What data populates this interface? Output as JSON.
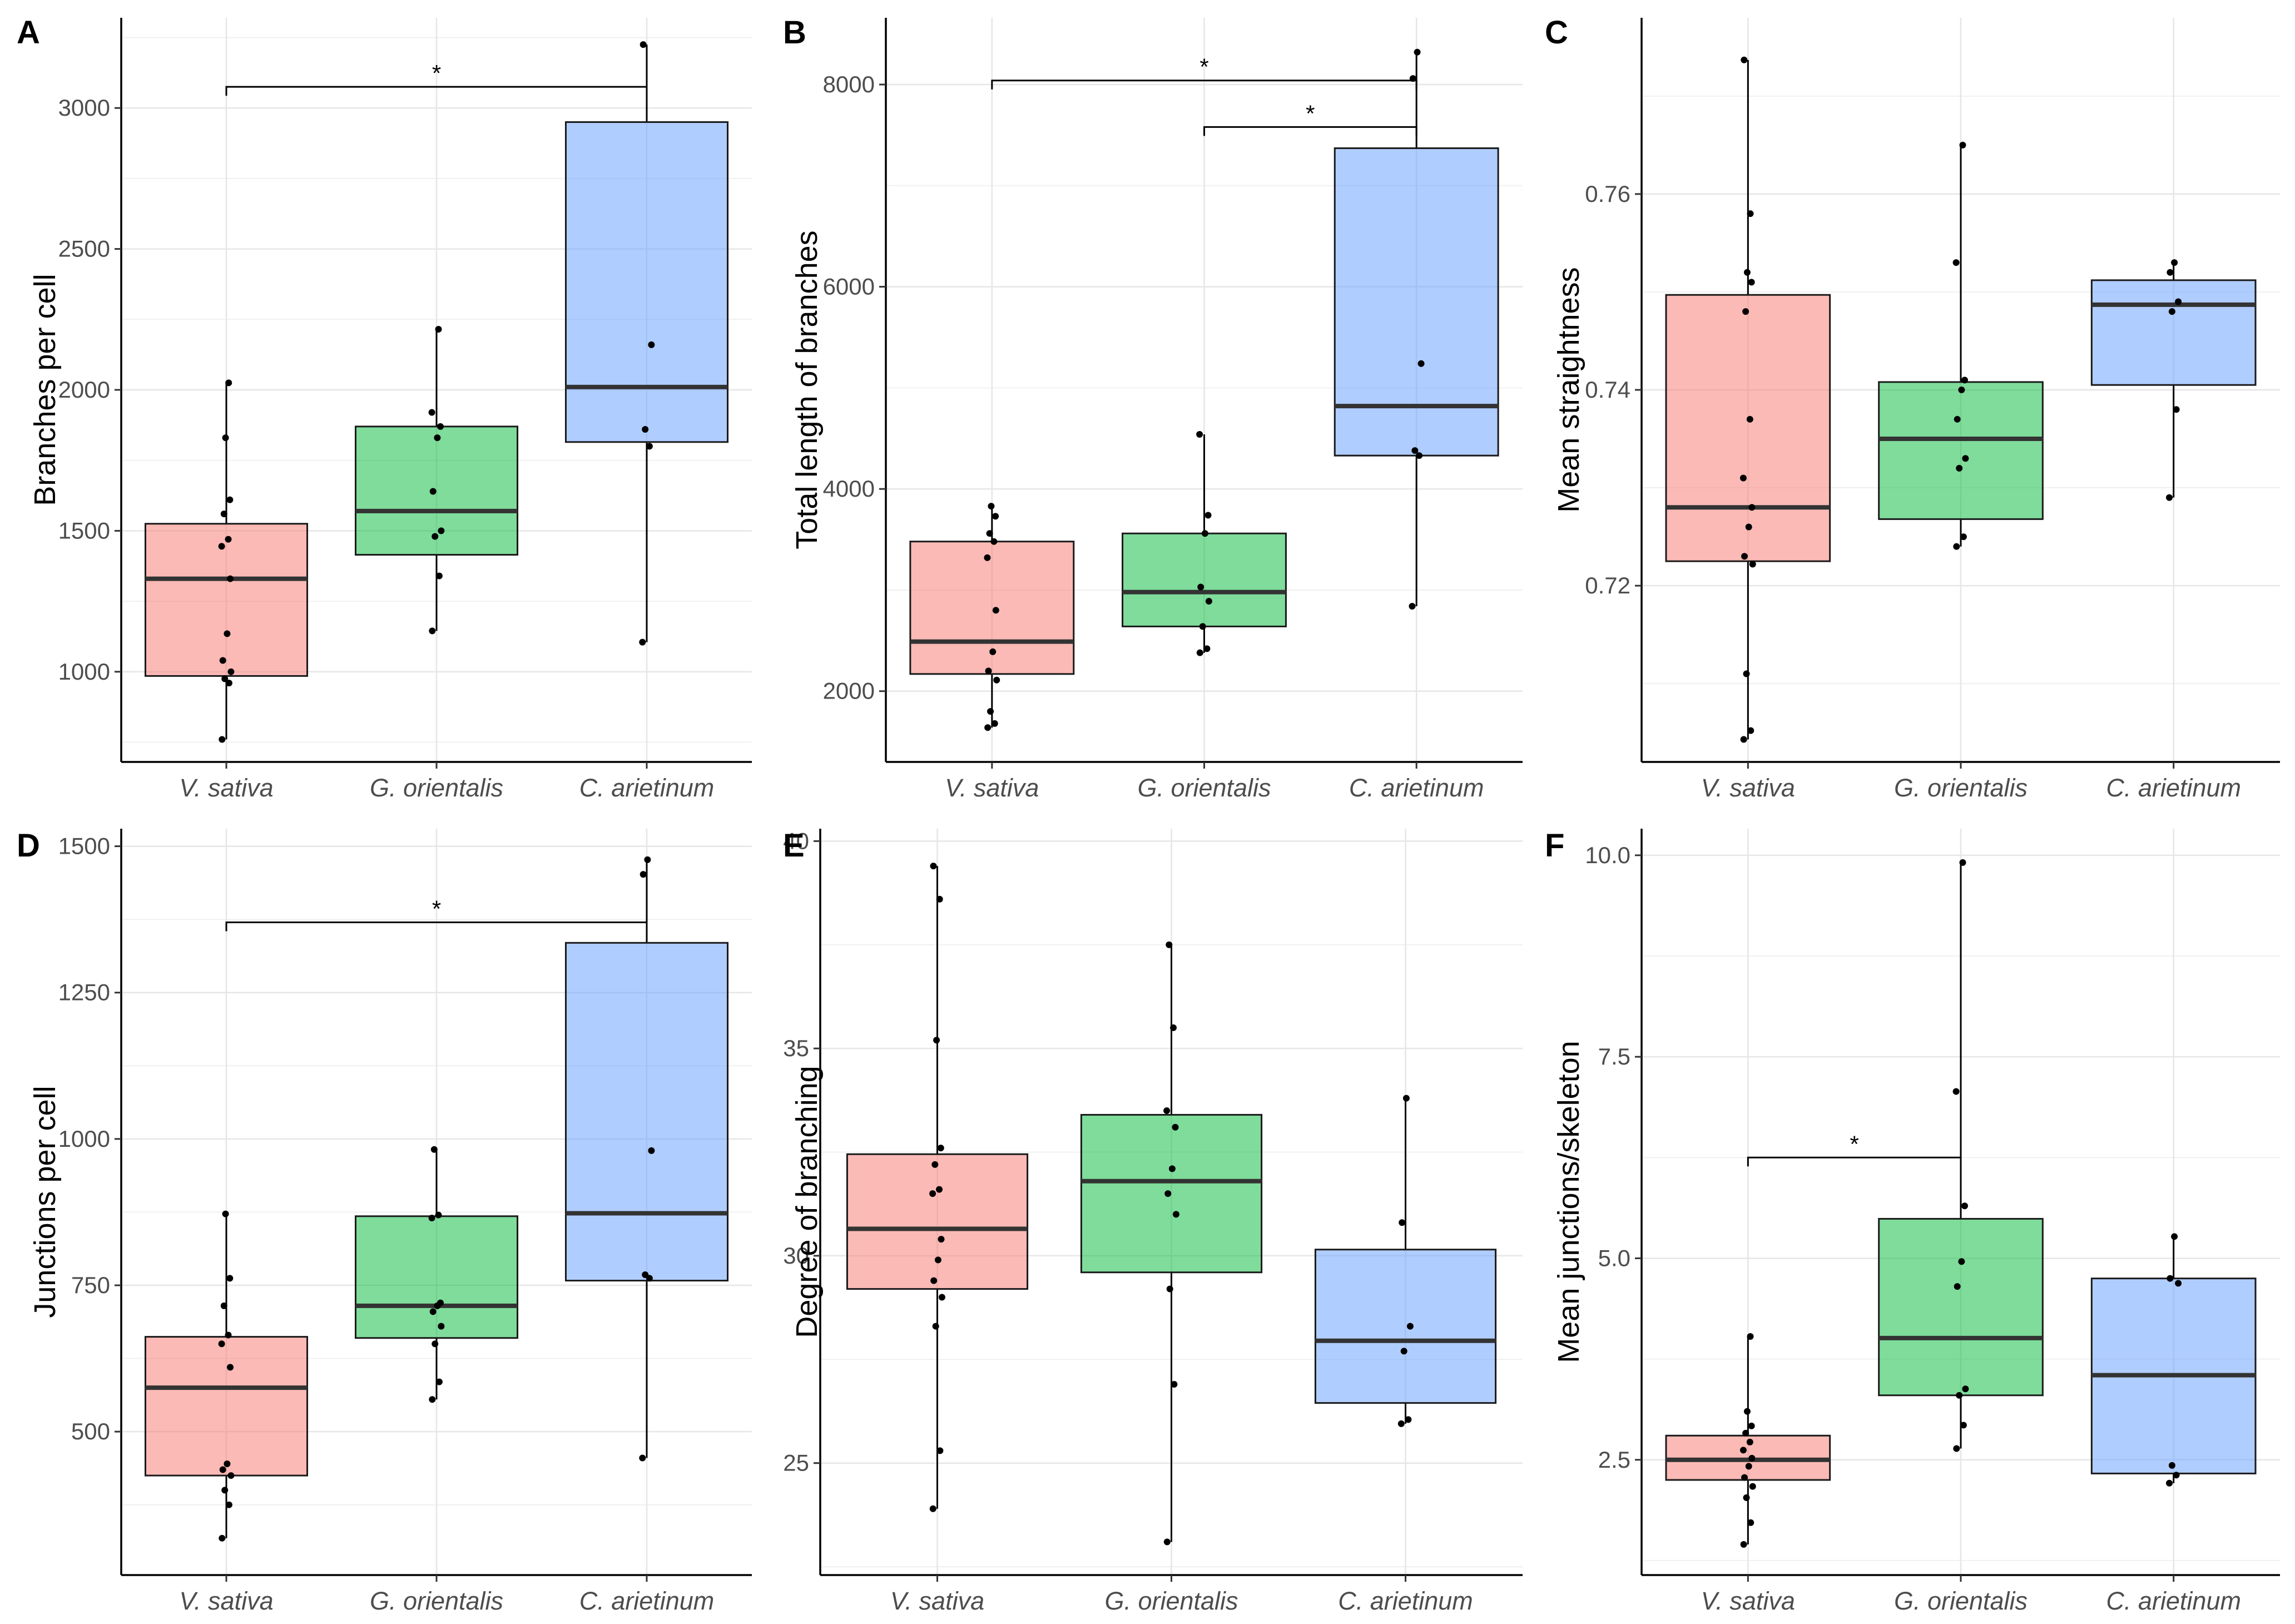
{
  "colors": {
    "V. sativa": "#f8766d",
    "G. orientalis": "#00ba38",
    "C. arietinum": "#619cff"
  },
  "chart_data": [
    {
      "type": "box",
      "panel": "A",
      "ylabel": "Branches per cell",
      "categories": [
        "V. sativa",
        "G. orientalis",
        "C. arietinum"
      ],
      "yticks": [
        1000,
        1500,
        2000,
        2500,
        3000
      ],
      "ylim": [
        680,
        3320
      ],
      "boxes": [
        {
          "q1": 985,
          "median": 1330,
          "q3": 1525,
          "whisker_low": 760,
          "whisker_high": 2025
        },
        {
          "q1": 1415,
          "median": 1570,
          "q3": 1870,
          "whisker_low": 1145,
          "whisker_high": 2215
        },
        {
          "q1": 1815,
          "median": 2010,
          "q3": 2950,
          "whisker_low": 1105,
          "whisker_high": 3225
        }
      ],
      "points": [
        [
          760,
          960,
          975,
          1000,
          1040,
          1135,
          1330,
          1445,
          1470,
          1560,
          1610,
          1830,
          2025
        ],
        [
          1145,
          1340,
          1480,
          1500,
          1640,
          1830,
          1870,
          1920,
          2215
        ],
        [
          1105,
          1800,
          1860,
          2160,
          3225
        ]
      ],
      "significance": [
        {
          "from": 0,
          "to": 2,
          "y": 3075,
          "label": "*"
        }
      ]
    },
    {
      "type": "box",
      "panel": "B",
      "ylabel": "Total length of branches",
      "categories": [
        "V. sativa",
        "G. orientalis",
        "C. arietinum"
      ],
      "yticks": [
        2000,
        4000,
        6000,
        8000
      ],
      "ylim": [
        1300,
        8660
      ],
      "boxes": [
        {
          "q1": 2170,
          "median": 2490,
          "q3": 3480,
          "whisker_low": 1640,
          "whisker_high": 3830
        },
        {
          "q1": 2640,
          "median": 2980,
          "q3": 3560,
          "whisker_low": 2380,
          "whisker_high": 4540
        },
        {
          "q1": 4330,
          "median": 4820,
          "q3": 7370,
          "whisker_low": 2840,
          "whisker_high": 8320
        }
      ],
      "points": [
        [
          1640,
          1680,
          1800,
          2110,
          2200,
          2390,
          2800,
          3320,
          3480,
          3560,
          3730,
          3830
        ],
        [
          2380,
          2420,
          2640,
          2890,
          3030,
          3560,
          3740,
          4540
        ],
        [
          2840,
          4330,
          4380,
          5240,
          8060,
          8320
        ]
      ],
      "significance": [
        {
          "from": 0,
          "to": 2,
          "y": 8040,
          "label": "*"
        },
        {
          "from": 1,
          "to": 2,
          "y": 7580,
          "label": "*"
        }
      ]
    },
    {
      "type": "box",
      "panel": "C",
      "ylabel": "Mean straightness",
      "categories": [
        "V. sativa",
        "G. orientalis",
        "C. arietinum"
      ],
      "yticks": [
        0.72,
        0.74,
        0.76
      ],
      "ylim": [
        0.702,
        0.778
      ],
      "boxes": [
        {
          "q1": 0.7225,
          "median": 0.728,
          "q3": 0.7497,
          "whisker_low": 0.7043,
          "whisker_high": 0.7737
        },
        {
          "q1": 0.7268,
          "median": 0.735,
          "q3": 0.7408,
          "whisker_low": 0.724,
          "whisker_high": 0.765
        },
        {
          "q1": 0.7405,
          "median": 0.7487,
          "q3": 0.7512,
          "whisker_low": 0.729,
          "whisker_high": 0.753
        }
      ],
      "points": [
        [
          0.7043,
          0.7052,
          0.711,
          0.7222,
          0.723,
          0.726,
          0.728,
          0.731,
          0.737,
          0.748,
          0.751,
          0.752,
          0.758,
          0.7737
        ],
        [
          0.724,
          0.725,
          0.732,
          0.733,
          0.737,
          0.74,
          0.741,
          0.753,
          0.765
        ],
        [
          0.729,
          0.738,
          0.748,
          0.749,
          0.752,
          0.753
        ]
      ],
      "significance": []
    },
    {
      "type": "box",
      "panel": "D",
      "ylabel": "Junctions per cell",
      "categories": [
        "V. sativa",
        "G. orientalis",
        "C. arietinum"
      ],
      "yticks": [
        500,
        750,
        1000,
        1250,
        1500
      ],
      "ylim": [
        255,
        1530
      ],
      "boxes": [
        {
          "q1": 425,
          "median": 575,
          "q3": 662,
          "whisker_low": 318,
          "whisker_high": 872
        },
        {
          "q1": 660,
          "median": 715,
          "q3": 868,
          "whisker_low": 555,
          "whisker_high": 982
        },
        {
          "q1": 758,
          "median": 873,
          "q3": 1335,
          "whisker_low": 455,
          "whisker_high": 1477
        }
      ],
      "points": [
        [
          318,
          375,
          400,
          425,
          435,
          445,
          610,
          650,
          665,
          715,
          762,
          872
        ],
        [
          555,
          585,
          650,
          680,
          705,
          715,
          720,
          865,
          870,
          982
        ],
        [
          455,
          762,
          768,
          980,
          1452,
          1477
        ]
      ],
      "significance": [
        {
          "from": 0,
          "to": 2,
          "y": 1370,
          "label": "*"
        }
      ]
    },
    {
      "type": "box",
      "panel": "E",
      "ylabel": "Degree of branching",
      "categories": [
        "V. sativa",
        "G. orientalis",
        "C. arietinum"
      ],
      "yticks": [
        25,
        30,
        35,
        40
      ],
      "ylim": [
        22.3,
        40.3
      ],
      "boxes": [
        {
          "q1": 29.2,
          "median": 30.65,
          "q3": 32.45,
          "whisker_low": 23.9,
          "whisker_high": 39.4
        },
        {
          "q1": 29.6,
          "median": 31.8,
          "q3": 33.4,
          "whisker_low": 23.1,
          "whisker_high": 37.5
        },
        {
          "q1": 26.45,
          "median": 27.95,
          "q3": 30.15,
          "whisker_low": 25.95,
          "whisker_high": 33.8
        }
      ],
      "points": [
        [
          23.9,
          25.3,
          28.3,
          29.0,
          29.4,
          29.9,
          30.4,
          31.5,
          31.6,
          32.2,
          32.6,
          35.2,
          38.6,
          39.4
        ],
        [
          23.1,
          26.9,
          29.2,
          31.0,
          31.5,
          32.1,
          33.1,
          33.5,
          35.5,
          37.5
        ],
        [
          25.95,
          26.05,
          27.7,
          28.3,
          30.8,
          33.8
        ]
      ],
      "significance": []
    },
    {
      "type": "box",
      "panel": "F",
      "ylabel": "Mean junctions/skeleton",
      "categories": [
        "V. sativa",
        "G. orientalis",
        "C. arietinum"
      ],
      "yticks": [
        2.5,
        5.0,
        7.5,
        10.0
      ],
      "ylim": [
        1.07,
        10.33
      ],
      "boxes": [
        {
          "q1": 2.25,
          "median": 2.5,
          "q3": 2.8,
          "whisker_low": 1.45,
          "whisker_high": 4.03
        },
        {
          "q1": 3.3,
          "median": 4.01,
          "q3": 5.49,
          "whisker_low": 2.64,
          "whisker_high": 9.91
        },
        {
          "q1": 2.33,
          "median": 3.55,
          "q3": 4.75,
          "whisker_low": 2.21,
          "whisker_high": 5.27
        }
      ],
      "points": [
        [
          1.45,
          1.72,
          2.03,
          2.17,
          2.28,
          2.42,
          2.52,
          2.62,
          2.72,
          2.83,
          2.92,
          3.1,
          4.03
        ],
        [
          2.64,
          2.93,
          3.3,
          3.38,
          4.65,
          4.96,
          5.65,
          7.07,
          9.91
        ],
        [
          2.21,
          2.31,
          2.43,
          4.69,
          4.75,
          5.27
        ]
      ],
      "significance": [
        {
          "from": 0,
          "to": 1,
          "y": 6.25,
          "label": "*"
        }
      ]
    }
  ]
}
